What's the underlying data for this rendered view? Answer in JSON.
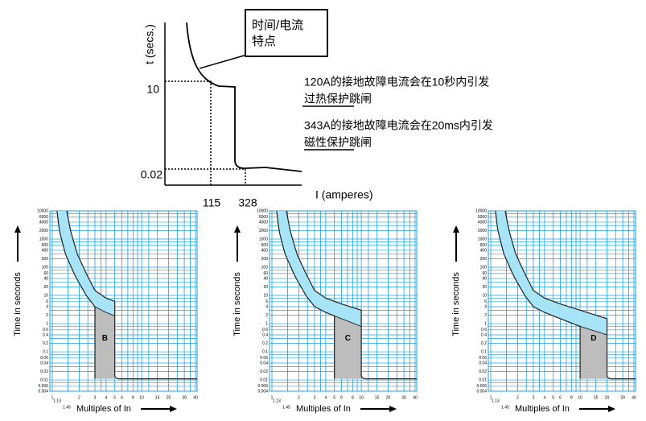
{
  "diagram": {
    "y_axis_label": "t (secs.)",
    "x_axis_label": "I (amperes)",
    "y_ticks": [
      "10",
      "0.02"
    ],
    "x_ticks": [
      "115",
      "328"
    ],
    "callout": [
      "时间/电流",
      "特点"
    ]
  },
  "notes": [
    [
      "120A的接地故障电流会在10秒内引发",
      "过热保护跳闸"
    ],
    [
      "343A的接地故障电流会在20ms内引发",
      "磁性保护跳闸"
    ]
  ],
  "curves": {
    "y_axis_label": "Time in seconds",
    "x_axis_label": "Multiples of In",
    "y_ticks": [
      "10000",
      "6000",
      "4000",
      "2000",
      "1000",
      "600",
      "400",
      "200",
      "100",
      "60",
      "40",
      "20",
      "10",
      "6",
      "4",
      "2",
      "1",
      "0.6",
      "0.4",
      "0.2",
      "0.1",
      "0.06",
      "0.04",
      "0.02",
      "0.01",
      "0.006",
      "0.004"
    ],
    "x_ticks": [
      "1",
      "1.13",
      "1.45",
      "2",
      "3",
      "4",
      "5",
      "6",
      "8",
      "10",
      "15",
      "20",
      "30",
      "40"
    ],
    "panels": [
      {
        "label": "B"
      },
      {
        "label": "C"
      },
      {
        "label": "D"
      }
    ]
  }
}
